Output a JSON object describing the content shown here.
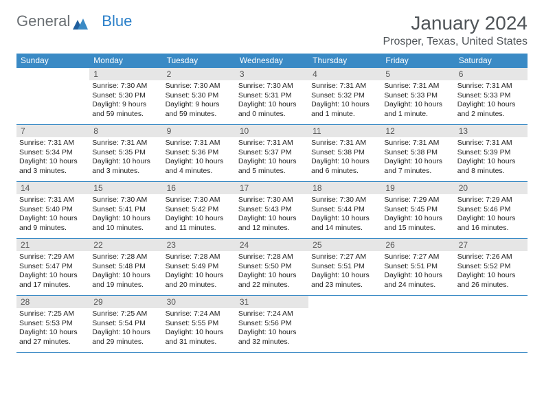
{
  "logo": {
    "part1": "General",
    "part2": "Blue"
  },
  "title": "January 2024",
  "location": "Prosper, Texas, United States",
  "colors": {
    "header_bg": "#3a8ac5",
    "header_text": "#ffffff",
    "logo_gray": "#6b7074",
    "logo_blue": "#2a7fc9",
    "title_color": "#505559",
    "daynum_bg": "#e6e6e6",
    "daynum_text": "#555555",
    "body_text": "#222222",
    "rule": "#3a8ac5",
    "page_bg": "#ffffff"
  },
  "fonts": {
    "base": "Arial",
    "title_pt": 28,
    "location_pt": 16,
    "weekday_pt": 12,
    "daynum_pt": 12,
    "body_pt": 10.5
  },
  "weekdays": [
    "Sunday",
    "Monday",
    "Tuesday",
    "Wednesday",
    "Thursday",
    "Friday",
    "Saturday"
  ],
  "grid": {
    "cols": 7,
    "rows": 5,
    "first_weekday_index": 1,
    "days_in_month": 31
  },
  "days": [
    {
      "n": 1,
      "sunrise": "7:30 AM",
      "sunset": "5:30 PM",
      "daylight": "9 hours and 59 minutes."
    },
    {
      "n": 2,
      "sunrise": "7:30 AM",
      "sunset": "5:30 PM",
      "daylight": "9 hours and 59 minutes."
    },
    {
      "n": 3,
      "sunrise": "7:30 AM",
      "sunset": "5:31 PM",
      "daylight": "10 hours and 0 minutes."
    },
    {
      "n": 4,
      "sunrise": "7:31 AM",
      "sunset": "5:32 PM",
      "daylight": "10 hours and 1 minute."
    },
    {
      "n": 5,
      "sunrise": "7:31 AM",
      "sunset": "5:33 PM",
      "daylight": "10 hours and 1 minute."
    },
    {
      "n": 6,
      "sunrise": "7:31 AM",
      "sunset": "5:33 PM",
      "daylight": "10 hours and 2 minutes."
    },
    {
      "n": 7,
      "sunrise": "7:31 AM",
      "sunset": "5:34 PM",
      "daylight": "10 hours and 3 minutes."
    },
    {
      "n": 8,
      "sunrise": "7:31 AM",
      "sunset": "5:35 PM",
      "daylight": "10 hours and 3 minutes."
    },
    {
      "n": 9,
      "sunrise": "7:31 AM",
      "sunset": "5:36 PM",
      "daylight": "10 hours and 4 minutes."
    },
    {
      "n": 10,
      "sunrise": "7:31 AM",
      "sunset": "5:37 PM",
      "daylight": "10 hours and 5 minutes."
    },
    {
      "n": 11,
      "sunrise": "7:31 AM",
      "sunset": "5:38 PM",
      "daylight": "10 hours and 6 minutes."
    },
    {
      "n": 12,
      "sunrise": "7:31 AM",
      "sunset": "5:38 PM",
      "daylight": "10 hours and 7 minutes."
    },
    {
      "n": 13,
      "sunrise": "7:31 AM",
      "sunset": "5:39 PM",
      "daylight": "10 hours and 8 minutes."
    },
    {
      "n": 14,
      "sunrise": "7:31 AM",
      "sunset": "5:40 PM",
      "daylight": "10 hours and 9 minutes."
    },
    {
      "n": 15,
      "sunrise": "7:30 AM",
      "sunset": "5:41 PM",
      "daylight": "10 hours and 10 minutes."
    },
    {
      "n": 16,
      "sunrise": "7:30 AM",
      "sunset": "5:42 PM",
      "daylight": "10 hours and 11 minutes."
    },
    {
      "n": 17,
      "sunrise": "7:30 AM",
      "sunset": "5:43 PM",
      "daylight": "10 hours and 12 minutes."
    },
    {
      "n": 18,
      "sunrise": "7:30 AM",
      "sunset": "5:44 PM",
      "daylight": "10 hours and 14 minutes."
    },
    {
      "n": 19,
      "sunrise": "7:29 AM",
      "sunset": "5:45 PM",
      "daylight": "10 hours and 15 minutes."
    },
    {
      "n": 20,
      "sunrise": "7:29 AM",
      "sunset": "5:46 PM",
      "daylight": "10 hours and 16 minutes."
    },
    {
      "n": 21,
      "sunrise": "7:29 AM",
      "sunset": "5:47 PM",
      "daylight": "10 hours and 17 minutes."
    },
    {
      "n": 22,
      "sunrise": "7:28 AM",
      "sunset": "5:48 PM",
      "daylight": "10 hours and 19 minutes."
    },
    {
      "n": 23,
      "sunrise": "7:28 AM",
      "sunset": "5:49 PM",
      "daylight": "10 hours and 20 minutes."
    },
    {
      "n": 24,
      "sunrise": "7:28 AM",
      "sunset": "5:50 PM",
      "daylight": "10 hours and 22 minutes."
    },
    {
      "n": 25,
      "sunrise": "7:27 AM",
      "sunset": "5:51 PM",
      "daylight": "10 hours and 23 minutes."
    },
    {
      "n": 26,
      "sunrise": "7:27 AM",
      "sunset": "5:51 PM",
      "daylight": "10 hours and 24 minutes."
    },
    {
      "n": 27,
      "sunrise": "7:26 AM",
      "sunset": "5:52 PM",
      "daylight": "10 hours and 26 minutes."
    },
    {
      "n": 28,
      "sunrise": "7:25 AM",
      "sunset": "5:53 PM",
      "daylight": "10 hours and 27 minutes."
    },
    {
      "n": 29,
      "sunrise": "7:25 AM",
      "sunset": "5:54 PM",
      "daylight": "10 hours and 29 minutes."
    },
    {
      "n": 30,
      "sunrise": "7:24 AM",
      "sunset": "5:55 PM",
      "daylight": "10 hours and 31 minutes."
    },
    {
      "n": 31,
      "sunrise": "7:24 AM",
      "sunset": "5:56 PM",
      "daylight": "10 hours and 32 minutes."
    }
  ],
  "labels": {
    "sunrise": "Sunrise:",
    "sunset": "Sunset:",
    "daylight": "Daylight:"
  }
}
